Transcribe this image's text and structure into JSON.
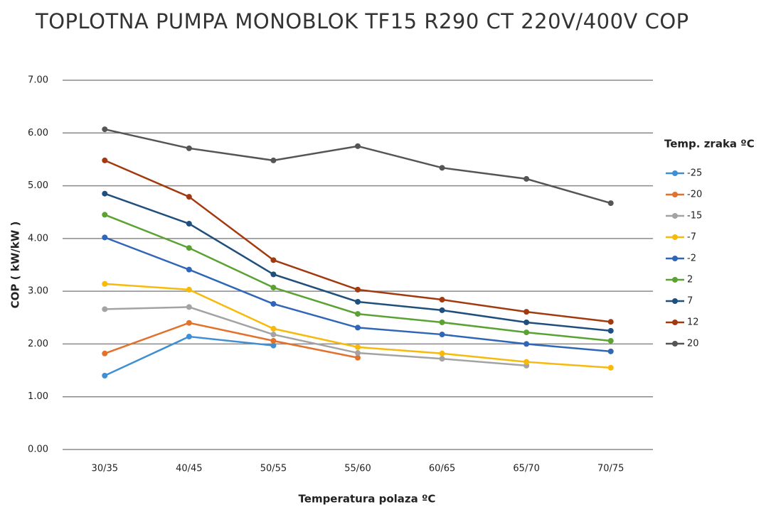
{
  "chart_data": {
    "type": "line",
    "title": "TOPLOTNA PUMPA MONOBLOK TF15 R290 CT 220V/400V COP",
    "y_label": "COP ( kW/kW )",
    "x_label": "Temperatura polaza ºC",
    "legend_title": "Temp. zraka ºC",
    "legend_position": "right",
    "grid": true,
    "categories": [
      "30/35",
      "40/45",
      "50/55",
      "55/60",
      "60/65",
      "65/70",
      "70/75"
    ],
    "ylim": [
      0,
      7
    ],
    "yticks": [
      {
        "value": 0,
        "label": "0.00"
      },
      {
        "value": 1,
        "label": "1.00"
      },
      {
        "value": 2,
        "label": "2.00"
      },
      {
        "value": 3,
        "label": "3.00"
      },
      {
        "value": 4,
        "label": "4.00"
      },
      {
        "value": 5,
        "label": "5.00"
      },
      {
        "value": 6,
        "label": "6.00"
      },
      {
        "value": 7,
        "label": "7.00"
      }
    ],
    "series": [
      {
        "name": "-25",
        "color": "#3f8fd2",
        "values": [
          1.4,
          2.14,
          1.97,
          null,
          null,
          null,
          null
        ]
      },
      {
        "name": "-20",
        "color": "#e2712a",
        "values": [
          1.82,
          2.4,
          2.06,
          1.74,
          null,
          null,
          null
        ]
      },
      {
        "name": "-15",
        "color": "#a3a3a3",
        "values": [
          2.66,
          2.7,
          2.18,
          1.83,
          1.72,
          1.59,
          null
        ]
      },
      {
        "name": "-7",
        "color": "#f7b90a",
        "values": [
          3.14,
          3.03,
          2.29,
          1.94,
          1.82,
          1.66,
          1.55
        ]
      },
      {
        "name": "-2",
        "color": "#2f66b7",
        "values": [
          4.02,
          3.41,
          2.76,
          2.31,
          2.18,
          2.0,
          1.86
        ]
      },
      {
        "name": "2",
        "color": "#5aa232",
        "values": [
          4.45,
          3.82,
          3.07,
          2.57,
          2.41,
          2.22,
          2.06
        ]
      },
      {
        "name": "7",
        "color": "#1f4f7d",
        "values": [
          4.85,
          4.28,
          3.32,
          2.8,
          2.64,
          2.41,
          2.25
        ]
      },
      {
        "name": "12",
        "color": "#a3390f",
        "values": [
          5.48,
          4.79,
          3.59,
          3.03,
          2.84,
          2.61,
          2.42
        ]
      },
      {
        "name": "20",
        "color": "#555555",
        "values": [
          6.07,
          5.71,
          5.48,
          5.75,
          5.34,
          5.13,
          4.67
        ]
      }
    ]
  }
}
